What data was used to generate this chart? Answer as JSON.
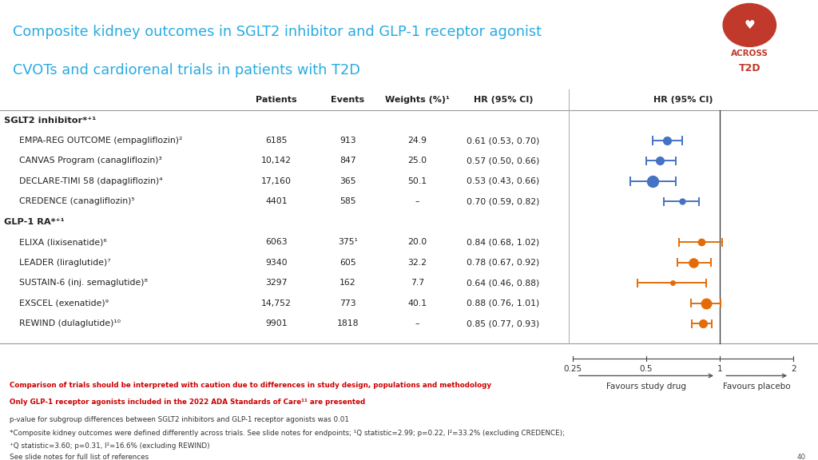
{
  "title_line1": "Composite kidney outcomes in SGLT2 inhibitor and GLP-1 receptor agonist",
  "title_line2": "CVOTs and cardiorenal trials in patients with T2D",
  "title_color": "#29ABE2",
  "bg_color": "#FFFFFF",
  "header_sep_color": "#AAAAAA",
  "groups": [
    {
      "label": "SGLT2 inhibitor*⁺¹",
      "bold": true,
      "color": "#222222"
    },
    {
      "label": "GLP-1 RA*⁺¹",
      "bold": true,
      "color": "#222222"
    }
  ],
  "rows": [
    {
      "group": 0,
      "study": "EMPA-REG OUTCOME (empagliflozin)²",
      "patients": "6185",
      "events": "913",
      "weight": "24.9",
      "hr_text": "0.61 (0.53, 0.70)",
      "hr": 0.61,
      "ci_low": 0.53,
      "ci_high": 0.7,
      "color": "#4472C4",
      "ms": 7
    },
    {
      "group": 0,
      "study": "CANVAS Program (canagliflozin)³",
      "patients": "10,142",
      "events": "847",
      "weight": "25.0",
      "hr_text": "0.57 (0.50, 0.66)",
      "hr": 0.57,
      "ci_low": 0.5,
      "ci_high": 0.66,
      "color": "#4472C4",
      "ms": 7
    },
    {
      "group": 0,
      "study": "DECLARE-TIMI 58 (dapagliflozin)⁴",
      "patients": "17,160",
      "events": "365",
      "weight": "50.1",
      "hr_text": "0.53 (0.43, 0.66)",
      "hr": 0.53,
      "ci_low": 0.43,
      "ci_high": 0.66,
      "color": "#4472C4",
      "ms": 10
    },
    {
      "group": 0,
      "study": "CREDENCE (canagliflozin)⁵",
      "patients": "4401",
      "events": "585",
      "weight": "–",
      "hr_text": "0.70 (0.59, 0.82)",
      "hr": 0.7,
      "ci_low": 0.59,
      "ci_high": 0.82,
      "color": "#4472C4",
      "ms": 5
    },
    {
      "group": 1,
      "study": "ELIXA (lixisenatide)⁶",
      "patients": "6063",
      "events": "375¹",
      "weight": "20.0",
      "hr_text": "0.84 (0.68, 1.02)",
      "hr": 0.84,
      "ci_low": 0.68,
      "ci_high": 1.02,
      "color": "#E36C09",
      "ms": 6
    },
    {
      "group": 1,
      "study": "LEADER (liraglutide)⁷",
      "patients": "9340",
      "events": "605",
      "weight": "32.2",
      "hr_text": "0.78 (0.67, 0.92)",
      "hr": 0.78,
      "ci_low": 0.67,
      "ci_high": 0.92,
      "color": "#E36C09",
      "ms": 8
    },
    {
      "group": 1,
      "study": "SUSTAIN-6 (inj. semaglutide)⁸",
      "patients": "3297",
      "events": "162",
      "weight": "7.7",
      "hr_text": "0.64 (0.46, 0.88)",
      "hr": 0.64,
      "ci_low": 0.46,
      "ci_high": 0.88,
      "color": "#E36C09",
      "ms": 4
    },
    {
      "group": 1,
      "study": "EXSCEL (exenatide)⁹",
      "patients": "14,752",
      "events": "773",
      "weight": "40.1",
      "hr_text": "0.88 (0.76, 1.01)",
      "hr": 0.88,
      "ci_low": 0.76,
      "ci_high": 1.01,
      "color": "#E36C09",
      "ms": 9
    },
    {
      "group": 1,
      "study": "REWIND (dulaglutide)¹⁰",
      "patients": "9901",
      "events": "1818",
      "weight": "–",
      "hr_text": "0.85 (0.77, 0.93)",
      "hr": 0.85,
      "ci_low": 0.77,
      "ci_high": 0.93,
      "color": "#E36C09",
      "ms": 7
    }
  ],
  "xmin": 0.25,
  "xmax": 2.0,
  "x_ticks": [
    0.25,
    0.5,
    1.0,
    2.0
  ],
  "x_tick_labels": [
    "0.25",
    "0.5",
    "1",
    "2"
  ],
  "footnote_red1": "Comparison of trials should be interpreted with caution due to differences in study design, populations and methodology",
  "footnote_red2": "Only GLP-1 receptor agonists included in the 2022 ADA Standards of Care¹¹ are presented",
  "footnote_b1": "p-value for subgroup differences between SGLT2 inhibitors and GLP-1 receptor agonists was 0.01",
  "footnote_b2": "*Composite kidney outcomes were defined differently across trials. See slide notes for endpoints; ¹Q statistic=2.99; p=0.22, I²=33.2% (excluding CREDENCE);",
  "footnote_b3": "⁺Q statistic=3.60; p=0.31, I²=16.6% (excluding REWIND)",
  "footnote_b4": "See slide notes for full list of references",
  "page_num": "40"
}
